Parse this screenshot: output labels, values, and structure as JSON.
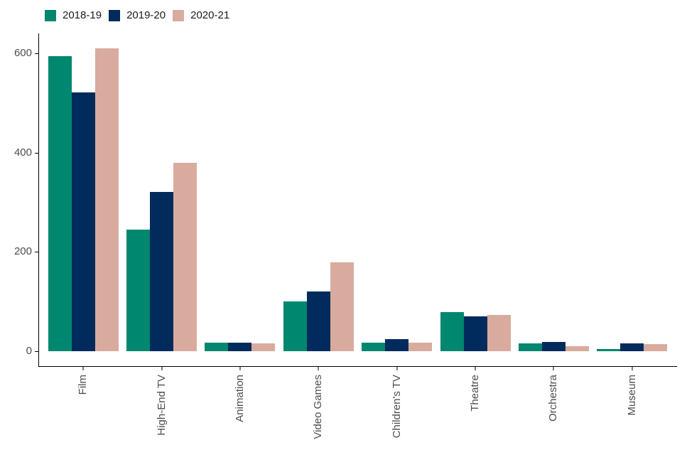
{
  "chart_data": {
    "type": "bar",
    "title": "",
    "xlabel": "",
    "ylabel": "",
    "categories": [
      "Film",
      "High-End TV",
      "Animation",
      "Video Games",
      "Children's TV",
      "Theatre",
      "Orchestra",
      "Museum"
    ],
    "series": [
      {
        "name": "2018-19",
        "color": "#00876F",
        "values": [
          595,
          245,
          17,
          100,
          16,
          78,
          15,
          4
        ]
      },
      {
        "name": "2019-20",
        "color": "#002B5C",
        "values": [
          522,
          320,
          17,
          120,
          23,
          69,
          18,
          15
        ]
      },
      {
        "name": "2020-21",
        "color": "#D9AB9E",
        "values": [
          611,
          380,
          15,
          178,
          16,
          72,
          9,
          13
        ]
      }
    ],
    "yticks": [
      0,
      200,
      400,
      600
    ],
    "ylim": [
      0,
      640
    ],
    "grid": false,
    "legend_position": "top-left",
    "axis_text_color": "#4D4D4D",
    "axis_line_color": "#000000",
    "background": "#FFFFFF"
  }
}
